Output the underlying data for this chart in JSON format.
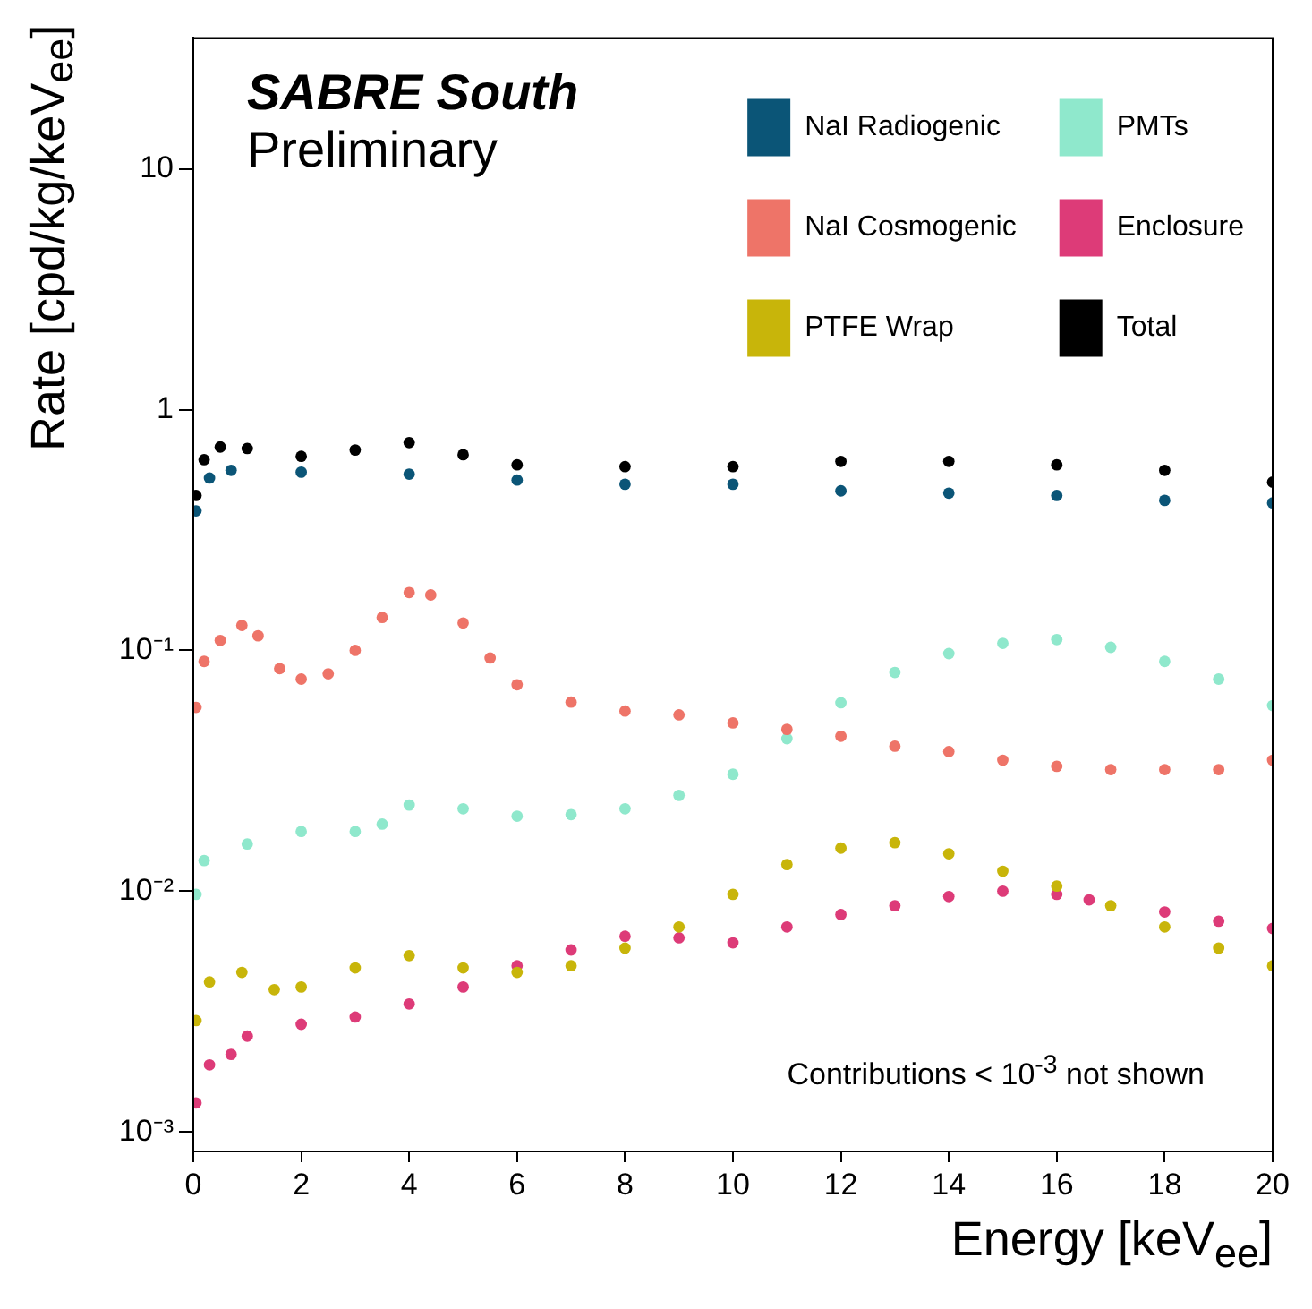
{
  "chart_data": {
    "type": "scatter",
    "title": "SABRE South",
    "subtitle": "Preliminary",
    "xlabel": "Energy [keV$_{ee}$]",
    "ylabel": "Rate [cpd/kg/keV$_{ee}$]",
    "annotations": [
      "Contributions < 10$^{-3}$ not shown"
    ],
    "xlim": [
      0,
      20
    ],
    "xticks": [
      0,
      2,
      4,
      6,
      8,
      10,
      12,
      14,
      16,
      18,
      20
    ],
    "ylim": [
      0.00083,
      35
    ],
    "yticks": [
      {
        "value": 0.001,
        "label": "10⁻³"
      },
      {
        "value": 0.01,
        "label": "10⁻²"
      },
      {
        "value": 0.1,
        "label": "10⁻¹"
      },
      1,
      10
    ],
    "log": "y",
    "grid": false,
    "legend": "top right",
    "marker": "circle",
    "series": [
      {
        "name": "NaI Radiogenic",
        "color": "#0b5577",
        "x": [
          0.05,
          0.3,
          0.7,
          2,
          4,
          6,
          8,
          10,
          12,
          14,
          16,
          18,
          20
        ],
        "values": [
          0.38,
          0.52,
          0.56,
          0.55,
          0.54,
          0.51,
          0.49,
          0.49,
          0.46,
          0.45,
          0.44,
          0.42,
          0.41
        ]
      },
      {
        "name": "NaI Cosmogenic",
        "color": "#ee7468",
        "x": [
          0.05,
          0.2,
          0.5,
          0.9,
          1.2,
          1.6,
          2,
          2.5,
          3,
          3.5,
          4,
          4.4,
          5,
          5.5,
          6,
          7,
          8,
          9,
          10,
          11,
          12,
          13,
          14,
          15,
          16,
          17,
          18,
          19,
          20
        ],
        "values": [
          0.058,
          0.09,
          0.11,
          0.127,
          0.115,
          0.084,
          0.076,
          0.08,
          0.1,
          0.137,
          0.174,
          0.17,
          0.13,
          0.093,
          0.072,
          0.061,
          0.056,
          0.054,
          0.05,
          0.047,
          0.044,
          0.04,
          0.038,
          0.035,
          0.033,
          0.032,
          0.032,
          0.032,
          0.035
        ]
      },
      {
        "name": "PTFE Wrap",
        "color": "#c8b50a",
        "x": [
          0.05,
          0.3,
          0.9,
          1.5,
          2,
          3,
          4,
          5,
          6,
          7,
          8,
          9,
          10,
          11,
          12,
          13,
          14,
          15,
          16,
          17,
          18,
          19,
          20
        ],
        "values": [
          0.0029,
          0.0042,
          0.0046,
          0.0039,
          0.004,
          0.0048,
          0.0054,
          0.0048,
          0.0046,
          0.0049,
          0.0058,
          0.0071,
          0.0097,
          0.0129,
          0.0151,
          0.0159,
          0.0143,
          0.0121,
          0.0105,
          0.0087,
          0.0071,
          0.0058,
          0.0049
        ]
      },
      {
        "name": "PMTs",
        "color": "#8fe8cc",
        "x": [
          0.05,
          0.2,
          1,
          2,
          3,
          3.5,
          4,
          5,
          6,
          7,
          8,
          9,
          10,
          11,
          12,
          13,
          14,
          15,
          16,
          17,
          18,
          19,
          20
        ],
        "values": [
          0.0097,
          0.0134,
          0.0157,
          0.0177,
          0.0177,
          0.019,
          0.0228,
          0.022,
          0.0205,
          0.0208,
          0.022,
          0.025,
          0.0306,
          0.043,
          0.0606,
          0.081,
          0.097,
          0.107,
          0.111,
          0.103,
          0.09,
          0.076,
          0.059
        ]
      },
      {
        "name": "Enclosure",
        "color": "#dd3b78",
        "x": [
          0.05,
          0.3,
          0.7,
          1,
          2,
          3,
          4,
          5,
          6,
          7,
          8,
          9,
          10,
          11,
          12,
          13,
          14,
          15,
          16,
          16.6,
          18,
          19,
          20
        ],
        "values": [
          0.00132,
          0.0019,
          0.0021,
          0.0025,
          0.0028,
          0.003,
          0.0034,
          0.004,
          0.0049,
          0.0057,
          0.0065,
          0.0064,
          0.0061,
          0.0071,
          0.008,
          0.0087,
          0.0095,
          0.01,
          0.0097,
          0.0092,
          0.0082,
          0.0075,
          0.007
        ]
      },
      {
        "name": "Total",
        "color": "#000000",
        "x": [
          0.05,
          0.2,
          0.5,
          1,
          2,
          3,
          4,
          5,
          6,
          8,
          10,
          12,
          14,
          16,
          18,
          20
        ],
        "values": [
          0.44,
          0.62,
          0.7,
          0.69,
          0.64,
          0.68,
          0.73,
          0.65,
          0.59,
          0.58,
          0.58,
          0.61,
          0.61,
          0.59,
          0.56,
          0.5
        ]
      }
    ]
  }
}
